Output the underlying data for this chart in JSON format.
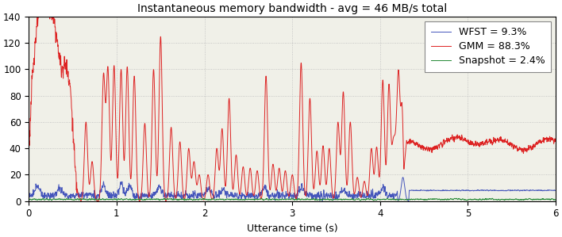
{
  "title": "Instantaneous memory bandwidth - avg = 46 MB/s total",
  "xlabel": "Utterance time (s)",
  "xlim": [
    0,
    6
  ],
  "ylim": [
    0,
    140
  ],
  "yticks": [
    0,
    20,
    40,
    60,
    80,
    100,
    120,
    140
  ],
  "xticks": [
    0,
    1,
    2,
    3,
    4,
    5,
    6
  ],
  "wfst_color": "#4455bb",
  "gmm_color": "#dd2222",
  "snapshot_color": "#228833",
  "legend_labels": [
    "WFST = 9.3%",
    "GMM = 88.3%",
    "Snapshot = 2.4%"
  ],
  "figsize": [
    7.08,
    2.99
  ],
  "dpi": 100,
  "title_fontsize": 10,
  "axis_fontsize": 9,
  "legend_fontsize": 9,
  "bg_color": "#f0f0e8",
  "grid_color": "#bbbbbb"
}
